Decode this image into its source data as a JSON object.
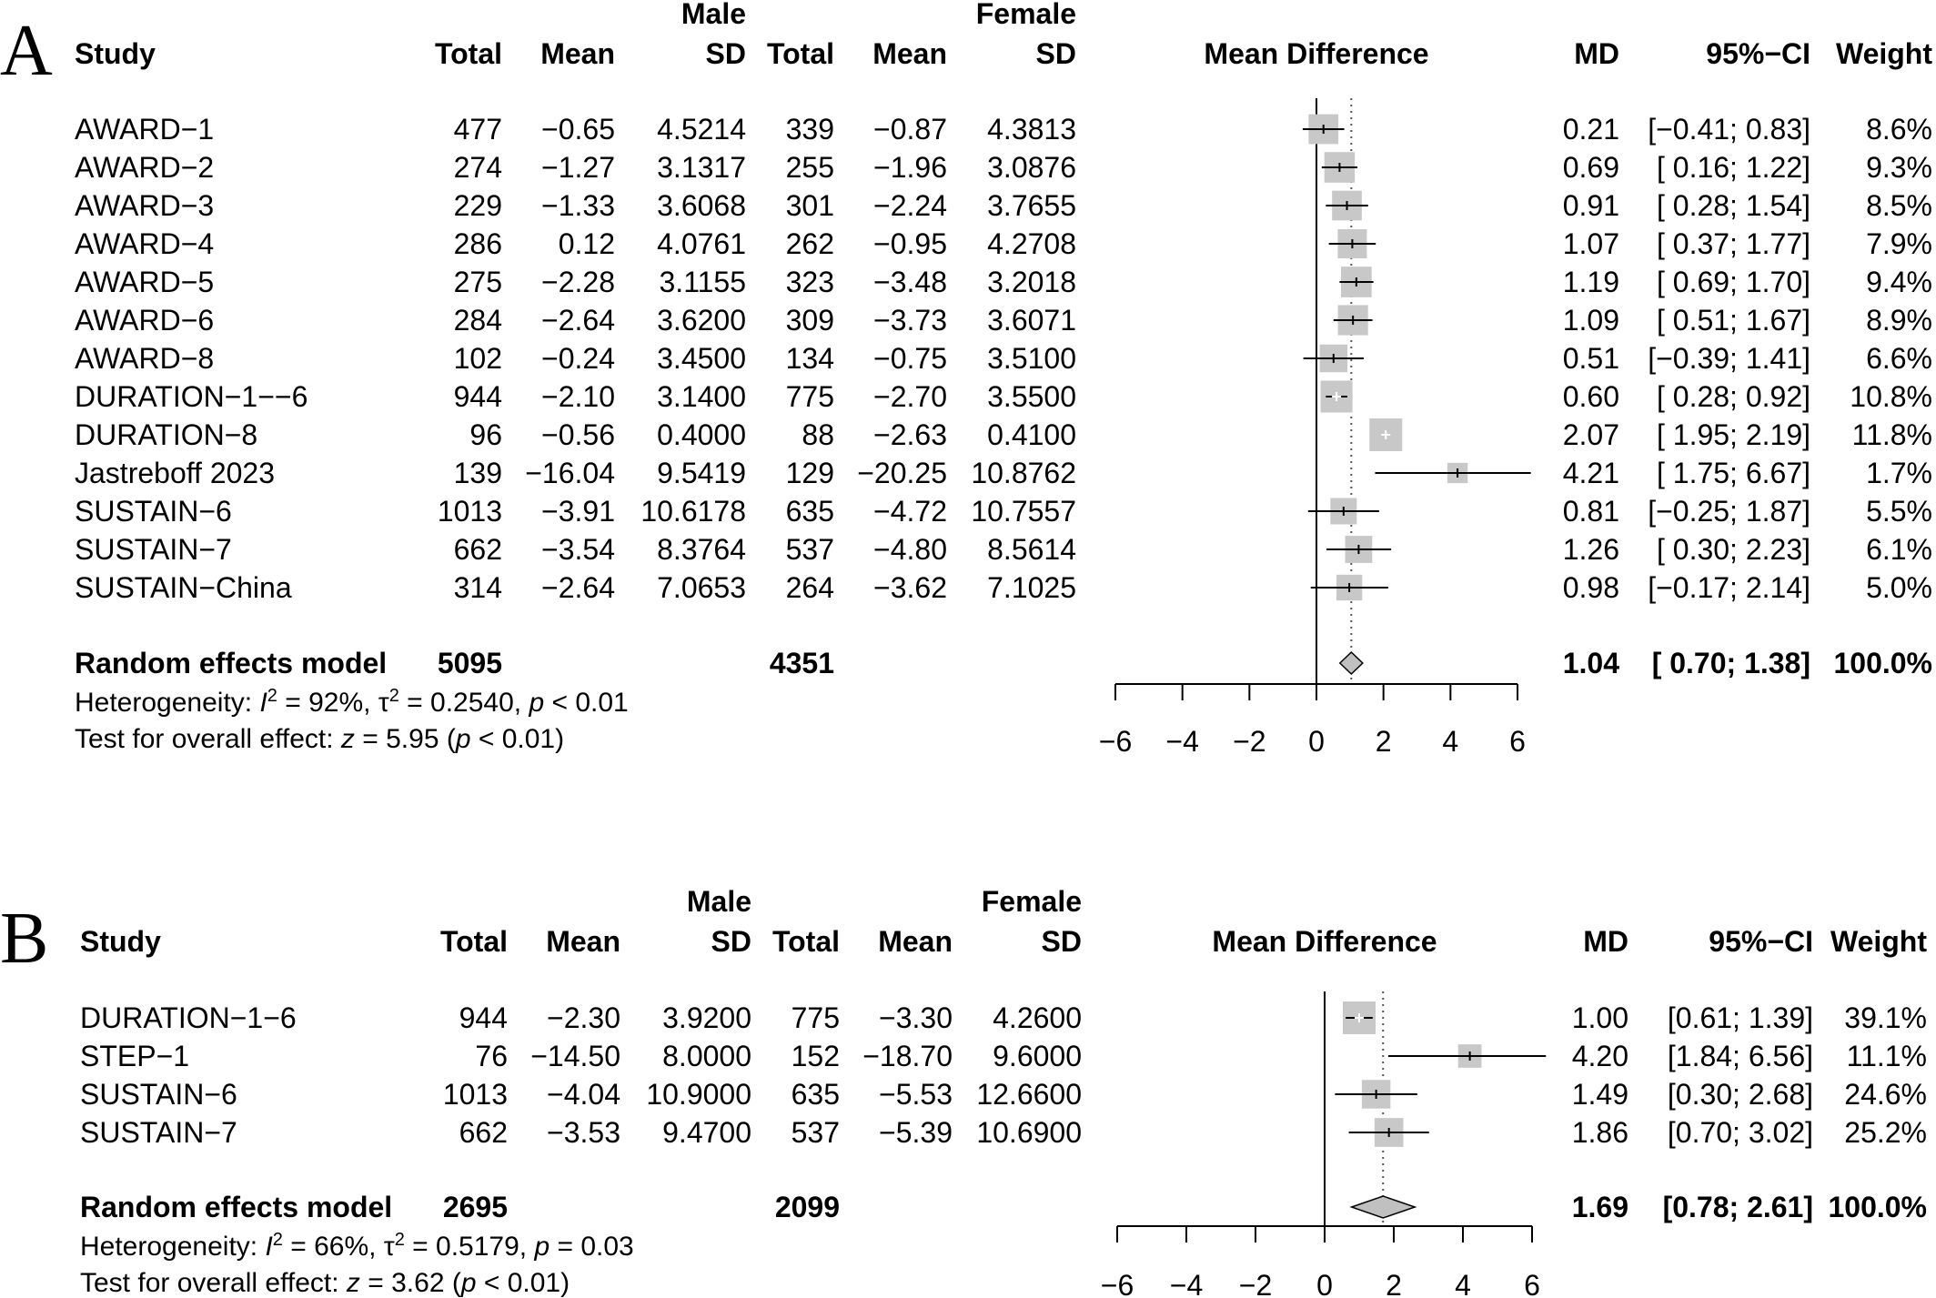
{
  "chart_data": [
    {
      "type": "forest",
      "panel": "A",
      "columns": {
        "study": "Study",
        "group1": "Male",
        "group2": "Female",
        "total": "Total",
        "mean": "Mean",
        "sd": "SD",
        "plot": "Mean Difference",
        "md": "MD",
        "ci": "95%−CI",
        "weight": "Weight"
      },
      "studies": [
        {
          "name": "AWARD−1",
          "m_total": "477",
          "m_mean": "−0.65",
          "m_sd": "4.5214",
          "f_total": "339",
          "f_mean": "−0.87",
          "f_sd": "4.3813",
          "md_label": "0.21",
          "ci_label": "[−0.41; 0.83]",
          "weight_label": "8.6%",
          "md": 0.21,
          "lo": -0.41,
          "hi": 0.83,
          "weight": 8.6,
          "square_color": "#c8c8c8",
          "tick_color": "#000000"
        },
        {
          "name": "AWARD−2",
          "m_total": "274",
          "m_mean": "−1.27",
          "m_sd": "3.1317",
          "f_total": "255",
          "f_mean": "−1.96",
          "f_sd": "3.0876",
          "md_label": "0.69",
          "ci_label": "[ 0.16; 1.22]",
          "weight_label": "9.3%",
          "md": 0.69,
          "lo": 0.16,
          "hi": 1.22,
          "weight": 9.3,
          "square_color": "#c8c8c8",
          "tick_color": "#000000"
        },
        {
          "name": "AWARD−3",
          "m_total": "229",
          "m_mean": "−1.33",
          "m_sd": "3.6068",
          "f_total": "301",
          "f_mean": "−2.24",
          "f_sd": "3.7655",
          "md_label": "0.91",
          "ci_label": "[ 0.28; 1.54]",
          "weight_label": "8.5%",
          "md": 0.91,
          "lo": 0.28,
          "hi": 1.54,
          "weight": 8.5,
          "square_color": "#c8c8c8",
          "tick_color": "#000000"
        },
        {
          "name": "AWARD−4",
          "m_total": "286",
          "m_mean": "0.12",
          "m_sd": "4.0761",
          "f_total": "262",
          "f_mean": "−0.95",
          "f_sd": "4.2708",
          "md_label": "1.07",
          "ci_label": "[ 0.37; 1.77]",
          "weight_label": "7.9%",
          "md": 1.07,
          "lo": 0.37,
          "hi": 1.77,
          "weight": 7.9,
          "square_color": "#c8c8c8",
          "tick_color": "#000000"
        },
        {
          "name": "AWARD−5",
          "m_total": "275",
          "m_mean": "−2.28",
          "m_sd": "3.1155",
          "f_total": "323",
          "f_mean": "−3.48",
          "f_sd": "3.2018",
          "md_label": "1.19",
          "ci_label": "[ 0.69; 1.70]",
          "weight_label": "9.4%",
          "md": 1.19,
          "lo": 0.69,
          "hi": 1.7,
          "weight": 9.4,
          "square_color": "#c8c8c8",
          "tick_color": "#000000"
        },
        {
          "name": "AWARD−6",
          "m_total": "284",
          "m_mean": "−2.64",
          "m_sd": "3.6200",
          "f_total": "309",
          "f_mean": "−3.73",
          "f_sd": "3.6071",
          "md_label": "1.09",
          "ci_label": "[ 0.51; 1.67]",
          "weight_label": "8.9%",
          "md": 1.09,
          "lo": 0.51,
          "hi": 1.67,
          "weight": 8.9,
          "square_color": "#c8c8c8",
          "tick_color": "#000000"
        },
        {
          "name": "AWARD−8",
          "m_total": "102",
          "m_mean": "−0.24",
          "m_sd": "3.4500",
          "f_total": "134",
          "f_mean": "−0.75",
          "f_sd": "3.5100",
          "md_label": "0.51",
          "ci_label": "[−0.39; 1.41]",
          "weight_label": "6.6%",
          "md": 0.51,
          "lo": -0.39,
          "hi": 1.41,
          "weight": 6.6,
          "square_color": "#c8c8c8",
          "tick_color": "#000000"
        },
        {
          "name": "DURATION−1−−6",
          "m_total": "944",
          "m_mean": "−2.10",
          "m_sd": "3.1400",
          "f_total": "775",
          "f_mean": "−2.70",
          "f_sd": "3.5500",
          "md_label": "0.60",
          "ci_label": "[ 0.28; 0.92]",
          "weight_label": "10.8%",
          "md": 0.6,
          "lo": 0.28,
          "hi": 0.92,
          "weight": 10.8,
          "square_color": "#c8c8c8",
          "tick_color": "#ffffff"
        },
        {
          "name": "DURATION−8",
          "m_total": "96",
          "m_mean": "−0.56",
          "m_sd": "0.4000",
          "f_total": "88",
          "f_mean": "−2.63",
          "f_sd": "0.4100",
          "md_label": "2.07",
          "ci_label": "[ 1.95; 2.19]",
          "weight_label": "11.8%",
          "md": 2.07,
          "lo": 1.95,
          "hi": 2.19,
          "weight": 11.8,
          "square_color": "#c8c8c8",
          "tick_color": "#ffffff"
        },
        {
          "name": "Jastreboff 2023",
          "m_total": "139",
          "m_mean": "−16.04",
          "m_sd": "9.5419",
          "f_total": "129",
          "f_mean": "−20.25",
          "f_sd": "10.8762",
          "md_label": "4.21",
          "ci_label": "[ 1.75; 6.67]",
          "weight_label": "1.7%",
          "md": 4.21,
          "lo": 1.75,
          "hi": 6.67,
          "weight": 1.7,
          "square_color": "#c8c8c8",
          "tick_color": "#000000"
        },
        {
          "name": "SUSTAIN−6",
          "m_total": "1013",
          "m_mean": "−3.91",
          "m_sd": "10.6178",
          "f_total": "635",
          "f_mean": "−4.72",
          "f_sd": "10.7557",
          "md_label": "0.81",
          "ci_label": "[−0.25; 1.87]",
          "weight_label": "5.5%",
          "md": 0.81,
          "lo": -0.25,
          "hi": 1.87,
          "weight": 5.5,
          "square_color": "#c8c8c8",
          "tick_color": "#000000"
        },
        {
          "name": "SUSTAIN−7",
          "m_total": "662",
          "m_mean": "−3.54",
          "m_sd": "8.3764",
          "f_total": "537",
          "f_mean": "−4.80",
          "f_sd": "8.5614",
          "md_label": "1.26",
          "ci_label": "[ 0.30; 2.23]",
          "weight_label": "6.1%",
          "md": 1.26,
          "lo": 0.3,
          "hi": 2.23,
          "weight": 6.1,
          "square_color": "#c8c8c8",
          "tick_color": "#000000"
        },
        {
          "name": "SUSTAIN−China",
          "m_total": "314",
          "m_mean": "−2.64",
          "m_sd": "7.0653",
          "f_total": "264",
          "f_mean": "−3.62",
          "f_sd": "7.1025",
          "md_label": "0.98",
          "ci_label": "[−0.17; 2.14]",
          "weight_label": "5.0%",
          "md": 0.98,
          "lo": -0.17,
          "hi": 2.14,
          "weight": 5.0,
          "square_color": "#c8c8c8",
          "tick_color": "#000000"
        }
      ],
      "pooled": {
        "label": "Random effects model",
        "m_total": "5095",
        "f_total": "4351",
        "md_label": "1.04",
        "ci_label": "[ 0.70; 1.38]",
        "weight_label": "100.0%",
        "md": 1.04,
        "lo": 0.7,
        "hi": 1.38,
        "diamond_color": "#c0c0c0"
      },
      "heterogeneity": {
        "prefix": "Heterogeneity: ",
        "i2": "92%",
        "tau2": "0.2540",
        "p": "< 0.01"
      },
      "overall": {
        "prefix": "Test for overall effect: ",
        "z": "5.95",
        "p": "< 0.01"
      },
      "x_axis": {
        "range": [
          -6,
          6
        ],
        "ticks": [
          -6,
          -4,
          -2,
          0,
          2,
          4,
          6
        ],
        "tick_labels": [
          "−6",
          "−4",
          "−2",
          "0",
          "2",
          "4",
          "6"
        ]
      }
    },
    {
      "type": "forest",
      "panel": "B",
      "columns": {
        "study": "Study",
        "group1": "Male",
        "group2": "Female",
        "total": "Total",
        "mean": "Mean",
        "sd": "SD",
        "plot": "Mean Difference",
        "md": "MD",
        "ci": "95%−CI",
        "weight": "Weight"
      },
      "studies": [
        {
          "name": "DURATION−1−6",
          "m_total": "944",
          "m_mean": "−2.30",
          "m_sd": "3.9200",
          "f_total": "775",
          "f_mean": "−3.30",
          "f_sd": "4.2600",
          "md_label": "1.00",
          "ci_label": "[0.61; 1.39]",
          "weight_label": "39.1%",
          "md": 1.0,
          "lo": 0.61,
          "hi": 1.39,
          "weight": 39.1,
          "square_color": "#c8c8c8",
          "tick_color": "#ffffff"
        },
        {
          "name": "STEP−1",
          "m_total": "76",
          "m_mean": "−14.50",
          "m_sd": "8.0000",
          "f_total": "152",
          "f_mean": "−18.70",
          "f_sd": "9.6000",
          "md_label": "4.20",
          "ci_label": "[1.84; 6.56]",
          "weight_label": "11.1%",
          "md": 4.2,
          "lo": 1.84,
          "hi": 6.56,
          "weight": 11.1,
          "square_color": "#c8c8c8",
          "tick_color": "#000000"
        },
        {
          "name": "SUSTAIN−6",
          "m_total": "1013",
          "m_mean": "−4.04",
          "m_sd": "10.9000",
          "f_total": "635",
          "f_mean": "−5.53",
          "f_sd": "12.6600",
          "md_label": "1.49",
          "ci_label": "[0.30; 2.68]",
          "weight_label": "24.6%",
          "md": 1.49,
          "lo": 0.3,
          "hi": 2.68,
          "weight": 24.6,
          "square_color": "#c8c8c8",
          "tick_color": "#000000"
        },
        {
          "name": "SUSTAIN−7",
          "m_total": "662",
          "m_mean": "−3.53",
          "m_sd": "9.4700",
          "f_total": "537",
          "f_mean": "−5.39",
          "f_sd": "10.6900",
          "md_label": "1.86",
          "ci_label": "[0.70; 3.02]",
          "weight_label": "25.2%",
          "md": 1.86,
          "lo": 0.7,
          "hi": 3.02,
          "weight": 25.2,
          "square_color": "#c8c8c8",
          "tick_color": "#000000"
        }
      ],
      "pooled": {
        "label": "Random effects model",
        "m_total": "2695",
        "f_total": "2099",
        "md_label": "1.69",
        "ci_label": "[0.78; 2.61]",
        "weight_label": "100.0%",
        "md": 1.69,
        "lo": 0.78,
        "hi": 2.61,
        "diamond_color": "#c0c0c0"
      },
      "heterogeneity": {
        "prefix": "Heterogeneity: ",
        "i2": "66%",
        "tau2": "0.5179",
        "p": "= 0.03"
      },
      "overall": {
        "prefix": "Test for overall effect: ",
        "z": "3.62",
        "p": "< 0.01"
      },
      "x_axis": {
        "range": [
          -6,
          6
        ],
        "ticks": [
          -6,
          -4,
          -2,
          0,
          2,
          4,
          6
        ],
        "tick_labels": [
          "−6",
          "−4",
          "−2",
          "0",
          "2",
          "4",
          "6"
        ]
      }
    }
  ]
}
